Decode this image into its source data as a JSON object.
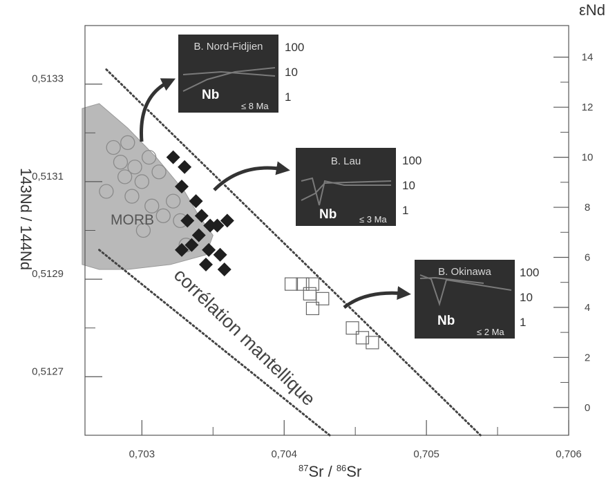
{
  "chart_data": {
    "type": "scatter",
    "xlabel": {
      "a": "87",
      "b": "Sr / ",
      "c": "86",
      "d": "Sr"
    },
    "ylabel": "143Nd / 144Nd",
    "y2label": "εNd",
    "xlim": [
      0.7026,
      0.706
    ],
    "ylim": [
      0.51258,
      0.51342
    ],
    "x_ticks": [
      {
        "v": 0.703,
        "label": "0,703"
      },
      {
        "v": 0.704,
        "label": "0,704"
      },
      {
        "v": 0.705,
        "label": "0,705"
      },
      {
        "v": 0.706,
        "label": "0,706"
      }
    ],
    "x_minor": [
      0.7035,
      0.7045,
      0.7055
    ],
    "y_ticks": [
      {
        "v": 0.5127,
        "label": "0,5127"
      },
      {
        "v": 0.5129,
        "label": "0,5129"
      },
      {
        "v": 0.5131,
        "label": "0,5131"
      },
      {
        "v": 0.5133,
        "label": "0,5133"
      }
    ],
    "y_minor": [
      0.5128,
      0.513,
      0.5132
    ],
    "y2_ticks": [
      {
        "v": 0,
        "label": "0"
      },
      {
        "v": 2,
        "label": "2"
      },
      {
        "v": 4,
        "label": "4"
      },
      {
        "v": 6,
        "label": "6"
      },
      {
        "v": 8,
        "label": "8"
      },
      {
        "v": 10,
        "label": "10"
      },
      {
        "v": 12,
        "label": "12"
      },
      {
        "v": 14,
        "label": "14"
      }
    ],
    "y2_minor": [
      1,
      3,
      5,
      7,
      9,
      11,
      13
    ],
    "y2_map": {
      "e0": 0.512637,
      "per_unit": 5.13e-05
    },
    "morb_region": {
      "label": "MORB",
      "outline": [
        [
          0.70258,
          0.51325
        ],
        [
          0.7027,
          0.51326
        ],
        [
          0.7029,
          0.51321
        ],
        [
          0.7031,
          0.51315
        ],
        [
          0.7033,
          0.51308
        ],
        [
          0.7034,
          0.51303
        ],
        [
          0.7035,
          0.51299
        ],
        [
          0.70345,
          0.51295
        ],
        [
          0.7032,
          0.51293
        ],
        [
          0.7029,
          0.51292
        ],
        [
          0.7027,
          0.51292
        ],
        [
          0.70258,
          0.51293
        ]
      ]
    },
    "series": [
      {
        "marker": "circle-open",
        "points": [
          [
            0.7028,
            0.51317
          ],
          [
            0.7029,
            0.51318
          ],
          [
            0.70285,
            0.51314
          ],
          [
            0.70295,
            0.51313
          ],
          [
            0.70305,
            0.51315
          ],
          [
            0.70288,
            0.51311
          ],
          [
            0.703,
            0.5131
          ],
          [
            0.70312,
            0.51312
          ],
          [
            0.70275,
            0.51308
          ],
          [
            0.70293,
            0.51307
          ],
          [
            0.70307,
            0.51305
          ],
          [
            0.70322,
            0.51306
          ],
          [
            0.70315,
            0.51303
          ],
          [
            0.70327,
            0.51302
          ],
          [
            0.70301,
            0.513
          ],
          [
            0.70331,
            0.51297
          ]
        ]
      },
      {
        "marker": "diamond-filled",
        "points": [
          [
            0.70322,
            0.51315
          ],
          [
            0.7033,
            0.51313
          ],
          [
            0.70328,
            0.51309
          ],
          [
            0.70338,
            0.51306
          ],
          [
            0.70332,
            0.51302
          ],
          [
            0.70342,
            0.51303
          ],
          [
            0.70348,
            0.51301
          ],
          [
            0.7034,
            0.51299
          ],
          [
            0.70353,
            0.51301
          ],
          [
            0.70335,
            0.51297
          ],
          [
            0.70347,
            0.51296
          ],
          [
            0.70355,
            0.51295
          ],
          [
            0.70345,
            0.51293
          ],
          [
            0.70358,
            0.51292
          ],
          [
            0.70328,
            0.51296
          ],
          [
            0.7036,
            0.51302
          ]
        ]
      },
      {
        "marker": "square-open",
        "points": [
          [
            0.70405,
            0.51289
          ],
          [
            0.70413,
            0.51289
          ],
          [
            0.7042,
            0.51289
          ],
          [
            0.70418,
            0.51287
          ],
          [
            0.70427,
            0.51286
          ],
          [
            0.7042,
            0.51284
          ],
          [
            0.70448,
            0.5128
          ],
          [
            0.70455,
            0.51278
          ],
          [
            0.70462,
            0.51277
          ]
        ]
      }
    ],
    "dashed_lines": [
      {
        "from": [
          0.70275,
          0.51333
        ],
        "to": [
          0.70538,
          0.51258
        ]
      },
      {
        "from": [
          0.7027,
          0.51296
        ],
        "to": [
          0.70432,
          0.51258
        ]
      }
    ],
    "annotations": [
      {
        "text": "corrélation mantellique"
      }
    ],
    "insets": [
      {
        "title": "B. Nord-Fidjien",
        "element": "Nb",
        "age": "≤ 8 Ma",
        "scale": [
          "100",
          "10",
          "1"
        ]
      },
      {
        "title": "B. Lau",
        "element": "Nb",
        "age": "≤ 3 Ma",
        "scale": [
          "100",
          "10",
          "1"
        ]
      },
      {
        "title": "B. Okinawa",
        "element": "Nb",
        "age": "≤ 2 Ma",
        "scale": [
          "100",
          "10",
          "1"
        ]
      }
    ]
  },
  "colors": {
    "morb_fill": "#b9b9b9",
    "inset_bg": "#2f2f2f",
    "inset_line": "#7a7a7a",
    "marker_dark": "#1f1f1f",
    "marker_open": "#8a8a8a",
    "axis": "#555555"
  }
}
